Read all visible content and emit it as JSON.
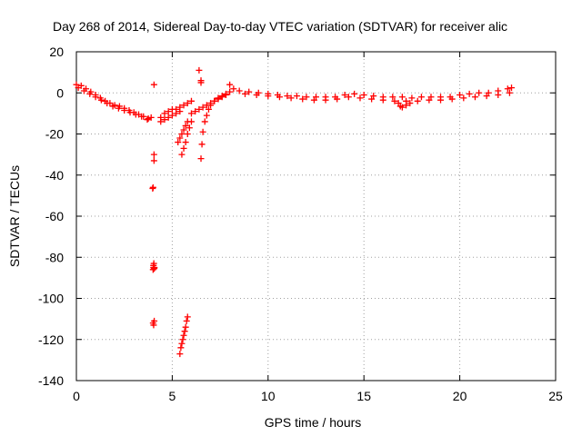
{
  "chart_data": {
    "type": "scatter",
    "title": "Day 268 of 2014, Sidereal Day-to-day VTEC variation (SDTVAR) for receiver alic",
    "xlabel": "GPS time / hours",
    "ylabel": "SDTVAR / TECUs",
    "xlim": [
      0,
      25
    ],
    "ylim": [
      -140,
      20
    ],
    "xticks": [
      0,
      5,
      10,
      15,
      20,
      25
    ],
    "yticks": [
      -140,
      -120,
      -100,
      -80,
      -60,
      -40,
      -20,
      0,
      20
    ],
    "xtick_labels": [
      "0",
      "5",
      "10",
      "15",
      "20",
      "25"
    ],
    "ytick_labels": [
      "-140",
      "-120",
      "-100",
      "-80",
      "-60",
      "-40",
      "-20",
      "0",
      "20"
    ],
    "grid": true,
    "marker": "+",
    "color": "#ff0000",
    "series": [
      {
        "name": "main-trace",
        "x": [
          0.0,
          0.25,
          0.5,
          0.75,
          1.0,
          1.25,
          1.5,
          1.75,
          2.0,
          2.25,
          2.5,
          2.75,
          3.0,
          3.25,
          3.5,
          3.75,
          3.9
        ],
        "y": [
          4,
          3.5,
          2,
          0.5,
          -1,
          -2.5,
          -4,
          -5,
          -6,
          -6.5,
          -7.5,
          -8.5,
          -9.5,
          -10.5,
          -11.5,
          -12.5,
          -12
        ]
      },
      {
        "name": "main-trace-lower",
        "x": [
          0.1,
          0.4,
          0.7,
          1.0,
          1.3,
          1.6,
          1.9,
          2.2,
          2.5,
          2.8,
          3.1,
          3.4,
          3.7
        ],
        "y": [
          2.5,
          1,
          -0.5,
          -2,
          -3.5,
          -5,
          -6.5,
          -7.5,
          -8.5,
          -9.5,
          -10.5,
          -11.5,
          -13
        ]
      },
      {
        "name": "isolated-4h",
        "x": [
          4.05,
          4.05,
          4.05,
          3.98,
          4.0,
          4.02,
          4.06,
          4.0,
          4.02,
          4.04,
          4.07,
          4.0,
          4.03,
          4.06
        ],
        "y": [
          4,
          -30,
          -33,
          -46.5,
          -46,
          -85,
          -85.5,
          -86,
          -84,
          -83,
          -85,
          -112,
          -113,
          -111
        ]
      },
      {
        "name": "recovery-4.5h",
        "x": [
          4.4,
          4.6,
          4.8,
          5.0,
          5.2,
          5.4,
          5.6,
          5.8,
          6.0
        ],
        "y": [
          -12,
          -10,
          -9,
          -8,
          -8,
          -7,
          -6,
          -5,
          -4
        ]
      },
      {
        "name": "recovery-4.5h-lower",
        "x": [
          4.4,
          4.6,
          4.8,
          5.0,
          5.2,
          5.4
        ],
        "y": [
          -14,
          -13,
          -12,
          -11,
          -10,
          -9
        ]
      },
      {
        "name": "streak-5.5h",
        "x": [
          5.5,
          5.6,
          5.7,
          5.8,
          5.9,
          6.0
        ],
        "y": [
          -30,
          -27,
          -24,
          -20,
          -17,
          -14
        ]
      },
      {
        "name": "streak-5.7h",
        "x": [
          5.3,
          5.4,
          5.5,
          5.6,
          5.7,
          5.8
        ],
        "y": [
          -24,
          -22,
          -20,
          -18,
          -16,
          -14
        ]
      },
      {
        "name": "negative-streak",
        "x": [
          5.4,
          5.45,
          5.5,
          5.55,
          5.6,
          5.65,
          5.7,
          5.75,
          5.8
        ],
        "y": [
          -127,
          -124,
          -122,
          -120,
          -118,
          -116,
          -114,
          -111,
          -109
        ]
      },
      {
        "name": "points-6.5h",
        "x": [
          6.4,
          6.5,
          6.5
        ],
        "y": [
          11,
          6,
          5
        ]
      },
      {
        "name": "recovery-6.5h",
        "x": [
          6.5,
          6.55,
          6.6,
          6.7,
          6.8,
          6.9,
          7.0,
          7.2,
          7.4,
          7.6,
          7.8,
          8.0
        ],
        "y": [
          -32,
          -25,
          -19,
          -14,
          -11,
          -8,
          -6,
          -4,
          -2.5,
          -1.5,
          -0.5,
          0.5
        ]
      },
      {
        "name": "recovery-6.5h-upper",
        "x": [
          6.0,
          6.2,
          6.4,
          6.6,
          6.8,
          7.0,
          7.2,
          7.4,
          7.6,
          7.8
        ],
        "y": [
          -10,
          -9,
          -8,
          -7,
          -6,
          -5,
          -4,
          -3,
          -2,
          -1
        ]
      },
      {
        "name": "main-trace-day",
        "x": [
          8.0,
          8.5,
          9.0,
          9.5,
          10.0,
          10.5,
          11.0,
          11.5,
          12.0,
          12.5,
          13.0,
          13.5,
          14.0,
          14.5,
          15.0,
          15.5,
          16.0,
          16.5,
          17.0,
          17.5,
          18.0,
          18.5,
          19.0,
          19.5,
          20.0,
          20.5,
          21.0,
          21.5,
          22.0,
          22.5,
          22.7
        ],
        "y": [
          4,
          1,
          0.5,
          0,
          -0.5,
          -1,
          -1.5,
          -1.5,
          -2,
          -2,
          -2,
          -2,
          -1,
          -0.5,
          -1,
          -1.5,
          -2,
          -2,
          -2,
          -2.5,
          -2,
          -2,
          -2,
          -2,
          -1,
          -0.5,
          0,
          0,
          1,
          2,
          2.5
        ]
      },
      {
        "name": "main-trace-day-lower",
        "x": [
          8.2,
          8.8,
          9.4,
          10.0,
          10.6,
          11.2,
          11.8,
          12.4,
          13.0,
          13.6,
          14.2,
          14.8,
          15.4,
          16.0,
          16.6,
          17.2,
          17.8,
          18.4,
          19.0,
          19.6,
          20.2,
          20.8,
          21.4,
          22.0,
          22.6
        ],
        "y": [
          2,
          -0.5,
          -1,
          -1.5,
          -2,
          -2.5,
          -3,
          -3.5,
          -3.5,
          -3,
          -2,
          -2.5,
          -3,
          -3.5,
          -4,
          -4,
          -4,
          -3.5,
          -3.5,
          -3,
          -2.5,
          -2,
          -1.5,
          -1,
          0
        ]
      },
      {
        "name": "dip-16.5h",
        "x": [
          16.8,
          16.9,
          17.0,
          17.2,
          17.4
        ],
        "y": [
          -5,
          -6.5,
          -7,
          -6,
          -5
        ]
      }
    ]
  }
}
